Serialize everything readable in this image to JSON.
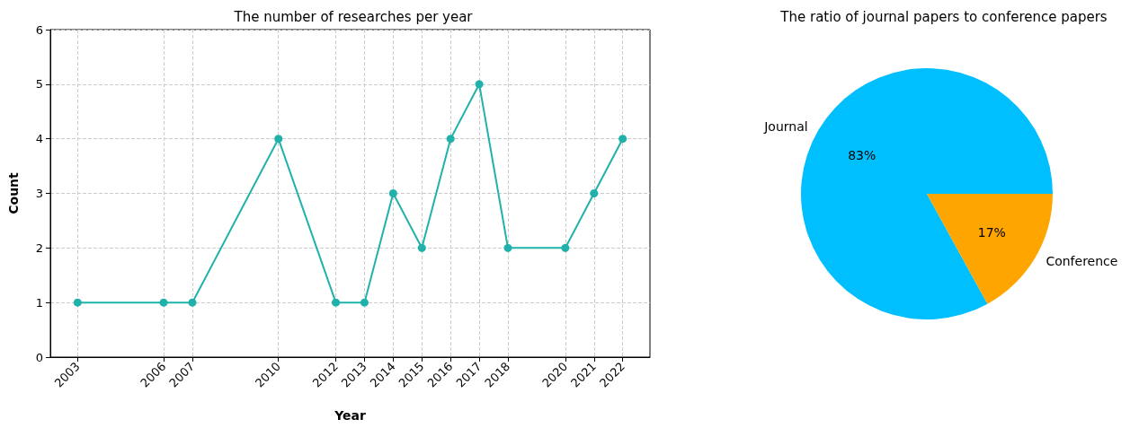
{
  "chart_data": [
    {
      "type": "line",
      "title": "The number of researches per year",
      "xlabel": "Year",
      "ylabel": "Count",
      "x": [
        2003,
        2006,
        2007,
        2010,
        2012,
        2013,
        2014,
        2015,
        2016,
        2017,
        2018,
        2020,
        2021,
        2022
      ],
      "series": [
        {
          "color": "#20b2aa",
          "values": [
            1,
            1,
            1,
            4,
            1,
            1,
            3,
            2,
            4,
            5,
            2,
            2,
            3,
            4
          ]
        }
      ],
      "xlim": [
        2002.05,
        2022.95
      ],
      "xticks": [
        2003,
        2006,
        2007,
        2010,
        2012,
        2013,
        2014,
        2015,
        2016,
        2017,
        2018,
        2020,
        2021,
        2022
      ],
      "ylim": [
        0,
        6
      ],
      "yticks": [
        0,
        1,
        2,
        3,
        4,
        5,
        6
      ],
      "grid": true,
      "marker": "circle",
      "line_style": "solid"
    },
    {
      "type": "pie",
      "title": "The ratio of journal papers to conference papers",
      "categories": [
        "Journal",
        "Conference"
      ],
      "values": [
        83,
        17
      ],
      "colors": [
        "#00bfff",
        "#ffa500"
      ],
      "value_labels": [
        "83%",
        "17%"
      ]
    }
  ]
}
